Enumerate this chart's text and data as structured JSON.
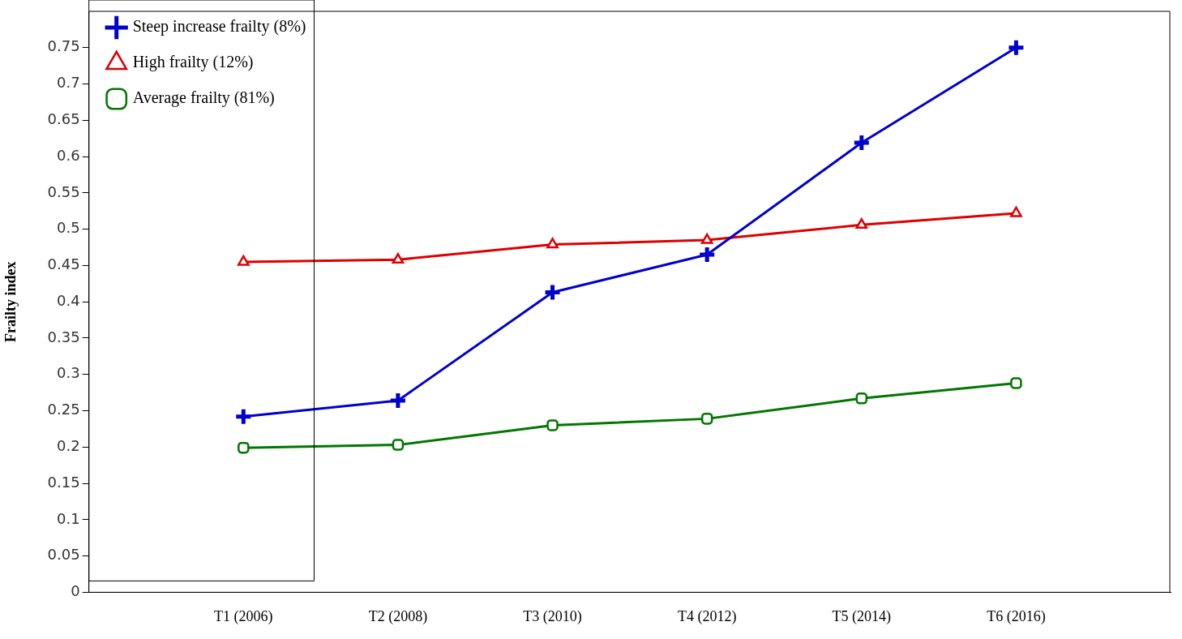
{
  "chart_data": {
    "type": "line",
    "ylabel": "Frailty index",
    "categories": [
      "T1 (2006)",
      "T2 (2008)",
      "T3 (2010)",
      "T4 (2012)",
      "T5 (2014)",
      "T6 (2016)"
    ],
    "series": [
      {
        "name": "Steep increase frailty (8%)",
        "color": "#0000cc",
        "marker": "cross",
        "values": [
          0.242,
          0.264,
          0.413,
          0.465,
          0.619,
          0.75
        ]
      },
      {
        "name": "High frailty (12%)",
        "color": "#dd0000",
        "marker": "triangle",
        "values": [
          0.455,
          0.458,
          0.479,
          0.485,
          0.506,
          0.522
        ]
      },
      {
        "name": "Average frailty (81%)",
        "color": "#007700",
        "marker": "square",
        "values": [
          0.199,
          0.203,
          0.23,
          0.239,
          0.267,
          0.288
        ]
      }
    ],
    "ylim": [
      0,
      0.8
    ],
    "yticks": [
      0,
      0.05,
      0.1,
      0.15,
      0.2,
      0.25,
      0.3,
      0.35,
      0.4,
      0.45,
      0.5,
      0.55,
      0.6,
      0.65,
      0.7,
      0.75
    ],
    "grid": false,
    "legend": "top left",
    "line_style": "solid"
  }
}
